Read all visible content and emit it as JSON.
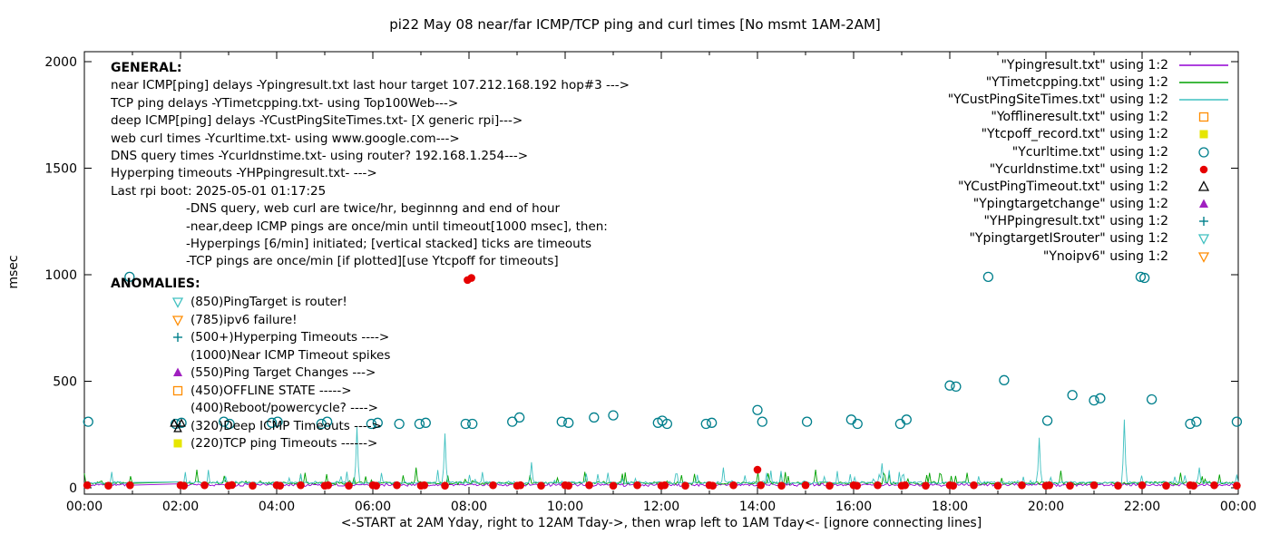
{
  "title": "pi22 May 08  near/far ICMP/TCP ping and curl times [No msmt 1AM-2AM]",
  "ylabel": "msec",
  "xlabel": "<-START at 2AM Yday, right to 12AM Tday->, then wrap left to 1AM Tday<- [ignore connecting lines]",
  "legend": [
    {
      "label": "\"Ypingresult.txt\" using 1:2",
      "marker": "line",
      "color": "#9400d3"
    },
    {
      "label": "\"YTimetcpping.txt\" using 1:2",
      "marker": "line",
      "color": "#00a000"
    },
    {
      "label": "\"YCustPingSiteTimes.txt\" using 1:2",
      "marker": "line",
      "color": "#3fc0c0"
    },
    {
      "label": "\"Yofflineresult.txt\" using 1:2",
      "marker": "square-open",
      "color": "#ff8c00"
    },
    {
      "label": "\"Ytcpoff_record.txt\" using 1:2",
      "marker": "square-filled",
      "color": "#e6e600"
    },
    {
      "label": "\"Ycurltime.txt\" using 1:2",
      "marker": "circle-open",
      "color": "#007f8c"
    },
    {
      "label": "\"Ycurldnstime.txt\" using 1:2",
      "marker": "circle-filled",
      "color": "#e60000"
    },
    {
      "label": "\"YCustPingTimeout.txt\" using 1:2",
      "marker": "tri-up-open",
      "color": "#000000"
    },
    {
      "label": "\"Ypingtargetchange\" using 1:2",
      "marker": "tri-up-filled",
      "color": "#a020c0"
    },
    {
      "label": "\"YHPpingresult.txt\" using 1:2",
      "marker": "plus",
      "color": "#007f8c"
    },
    {
      "label": "\"YpingtargetISrouter\" using 1:2",
      "marker": "tri-down-open",
      "color": "#3fc0c0"
    },
    {
      "label": "\"Ynoipv6\" using 1:2",
      "marker": "tri-down-open",
      "color": "#ff8c00"
    }
  ],
  "general": {
    "heading": "GENERAL:",
    "lines": [
      "near ICMP[ping] delays -Ypingresult.txt last hour target 107.212.168.192 hop#3 --->",
      "TCP ping delays -YTimetcpping.txt- using Top100Web--->",
      "deep ICMP[ping] delays -YCustPingSiteTimes.txt- [X generic rpi]--->",
      "web curl times -Ycurltime.txt- using www.google.com--->",
      "DNS query times -Ycurldnstime.txt- using router? 192.168.1.254--->",
      "Hyperping timeouts -YHPpingresult.txt- --->",
      "Last rpi boot: 2025-05-01 01:17:25"
    ],
    "notes": [
      "-DNS query, web curl are twice/hr, beginnng and end of hour",
      "-near,deep ICMP pings are once/min until timeout[1000 msec], then:",
      "-Hyperpings [6/min] initiated; [vertical stacked] ticks are timeouts",
      "-TCP pings are once/min [if plotted][use Ytcpoff for timeouts]"
    ]
  },
  "anomalies": {
    "heading": "ANOMALIES:",
    "items": [
      {
        "text": "(850)PingTarget is router!",
        "icon": "tri-down-open",
        "color": "#3fc0c0"
      },
      {
        "text": "(785)ipv6 failure!",
        "icon": "tri-down-open",
        "color": "#ff8c00"
      },
      {
        "text": "(500+)Hyperping Timeouts ---->",
        "icon": "plus",
        "color": "#007f8c"
      },
      {
        "text": "(1000)Near ICMP Timeout spikes",
        "icon": "",
        "color": ""
      },
      {
        "text": "(550)Ping Target Changes --->",
        "icon": "tri-up-filled",
        "color": "#a020c0"
      },
      {
        "text": "(450)OFFLINE STATE ----->",
        "icon": "square-open",
        "color": "#ff8c00"
      },
      {
        "text": "(400)Reboot/powercycle? ---->",
        "icon": "",
        "color": ""
      },
      {
        "text": "(320)Deep ICMP Timeouts ---->",
        "icon": "tri-stack",
        "color": "#000000"
      },
      {
        "text": "(220)TCP ping Timeouts ------>",
        "icon": "square-filled",
        "color": "#e6e600"
      }
    ]
  },
  "chart_data": {
    "type": "scatter",
    "title": "pi22 May 08  near/far ICMP/TCP ping and curl times [No msmt 1AM-2AM]",
    "xlabel": "<-START at 2AM Yday, right to 12AM Tday->, then wrap left to 1AM Tday<- [ignore connecting lines]",
    "ylabel": "msec",
    "x_axis": {
      "ticks": [
        "00:00",
        "02:00",
        "04:00",
        "06:00",
        "08:00",
        "10:00",
        "12:00",
        "14:00",
        "16:00",
        "18:00",
        "20:00",
        "22:00",
        "00:00"
      ],
      "range_hours": [
        0,
        24
      ],
      "minor_tick_every_hour": true
    },
    "y_axis": {
      "ticks": [
        0,
        500,
        1000,
        1500,
        2000
      ],
      "range": [
        0,
        2000
      ]
    },
    "grid": false,
    "legend_position": "top-right",
    "no_measurement_gap_hours": [
      1,
      2
    ],
    "series": [
      {
        "name": "Ypingresult.txt",
        "type": "noisy-line",
        "color": "#9400d3",
        "base": 6,
        "jitter": 6,
        "seed": 11,
        "gap_hours": [
          1,
          2
        ],
        "spikes": []
      },
      {
        "name": "YTimetcpping.txt",
        "type": "noisy-line",
        "color": "#00a000",
        "base": 14,
        "jitter": 55,
        "seed": 7,
        "gap_hours": [
          1,
          2
        ],
        "spikes": [
          [
            2.35,
            85
          ],
          [
            4.6,
            70
          ],
          [
            6.9,
            95
          ],
          [
            10.4,
            75
          ],
          [
            12.7,
            65
          ],
          [
            15.2,
            85
          ],
          [
            18.35,
            70
          ],
          [
            20.3,
            80
          ],
          [
            22.8,
            70
          ]
        ]
      },
      {
        "name": "YCustPingSiteTimes.txt",
        "type": "noisy-line",
        "color": "#3fc0c0",
        "base": 16,
        "jitter": 70,
        "seed": 13,
        "gap_hours": [
          1,
          2
        ],
        "spikes": [
          [
            5.67,
            285
          ],
          [
            7.5,
            255
          ],
          [
            9.3,
            120
          ],
          [
            13.3,
            95
          ],
          [
            16.6,
            115
          ],
          [
            19.85,
            235
          ],
          [
            21.62,
            320
          ],
          [
            23.2,
            95
          ]
        ]
      },
      {
        "name": "Ycurltime.txt",
        "type": "points",
        "marker": "circle-open",
        "color": "#007f8c",
        "points": [
          [
            0.08,
            310
          ],
          [
            0.94,
            990
          ],
          [
            1.9,
            300
          ],
          [
            2.02,
            305
          ],
          [
            2.9,
            310
          ],
          [
            3.02,
            300
          ],
          [
            3.9,
            305
          ],
          [
            4.02,
            310
          ],
          [
            4.93,
            300
          ],
          [
            5.05,
            310
          ],
          [
            5.97,
            300
          ],
          [
            6.1,
            305
          ],
          [
            6.55,
            300
          ],
          [
            6.97,
            300
          ],
          [
            7.1,
            305
          ],
          [
            7.93,
            300
          ],
          [
            8.07,
            300
          ],
          [
            8.9,
            310
          ],
          [
            9.05,
            330
          ],
          [
            9.93,
            310
          ],
          [
            10.07,
            305
          ],
          [
            10.6,
            330
          ],
          [
            11.0,
            340
          ],
          [
            11.93,
            305
          ],
          [
            12.02,
            315
          ],
          [
            12.12,
            300
          ],
          [
            12.93,
            300
          ],
          [
            13.05,
            305
          ],
          [
            14.0,
            365
          ],
          [
            14.1,
            310
          ],
          [
            15.03,
            310
          ],
          [
            15.95,
            320
          ],
          [
            16.08,
            300
          ],
          [
            16.97,
            300
          ],
          [
            17.1,
            320
          ],
          [
            18.0,
            480
          ],
          [
            18.13,
            475
          ],
          [
            18.8,
            990
          ],
          [
            19.13,
            505
          ],
          [
            20.03,
            315
          ],
          [
            20.55,
            435
          ],
          [
            21.0,
            410
          ],
          [
            21.13,
            420
          ],
          [
            21.97,
            990
          ],
          [
            22.05,
            985
          ],
          [
            22.2,
            415
          ],
          [
            23.0,
            300
          ],
          [
            23.13,
            310
          ],
          [
            23.97,
            310
          ]
        ]
      },
      {
        "name": "Ycurldnstime.txt",
        "type": "points",
        "marker": "circle-filled",
        "color": "#e60000",
        "points": [
          [
            0.06,
            12
          ],
          [
            0.5,
            10
          ],
          [
            0.95,
            12
          ],
          [
            2.0,
            12
          ],
          [
            2.07,
            10
          ],
          [
            2.5,
            12
          ],
          [
            3.0,
            10
          ],
          [
            3.07,
            13
          ],
          [
            3.5,
            10
          ],
          [
            4.0,
            12
          ],
          [
            4.07,
            10
          ],
          [
            4.5,
            12
          ],
          [
            5.0,
            10
          ],
          [
            5.07,
            12
          ],
          [
            5.5,
            10
          ],
          [
            6.0,
            12
          ],
          [
            6.07,
            10
          ],
          [
            6.5,
            12
          ],
          [
            7.0,
            10
          ],
          [
            7.07,
            12
          ],
          [
            7.5,
            10
          ],
          [
            7.97,
            975
          ],
          [
            8.05,
            985
          ],
          [
            8.5,
            12
          ],
          [
            9.0,
            10
          ],
          [
            9.07,
            12
          ],
          [
            9.5,
            10
          ],
          [
            10.0,
            12
          ],
          [
            10.07,
            10
          ],
          [
            10.5,
            12
          ],
          [
            11.0,
            10
          ],
          [
            11.5,
            12
          ],
          [
            12.0,
            10
          ],
          [
            12.07,
            12
          ],
          [
            12.5,
            10
          ],
          [
            13.0,
            12
          ],
          [
            13.07,
            10
          ],
          [
            13.5,
            12
          ],
          [
            14.0,
            85
          ],
          [
            14.07,
            12
          ],
          [
            14.5,
            10
          ],
          [
            15.0,
            12
          ],
          [
            15.5,
            10
          ],
          [
            16.0,
            12
          ],
          [
            16.07,
            10
          ],
          [
            16.5,
            12
          ],
          [
            17.0,
            10
          ],
          [
            17.07,
            12
          ],
          [
            17.5,
            10
          ],
          [
            18.0,
            12
          ],
          [
            18.07,
            10
          ],
          [
            18.5,
            12
          ],
          [
            19.0,
            10
          ],
          [
            19.5,
            12
          ],
          [
            20.0,
            10
          ],
          [
            20.07,
            12
          ],
          [
            20.5,
            10
          ],
          [
            21.0,
            12
          ],
          [
            21.5,
            10
          ],
          [
            22.0,
            12
          ],
          [
            22.5,
            10
          ],
          [
            23.0,
            12
          ],
          [
            23.07,
            10
          ],
          [
            23.5,
            12
          ],
          [
            23.97,
            10
          ]
        ]
      }
    ]
  }
}
